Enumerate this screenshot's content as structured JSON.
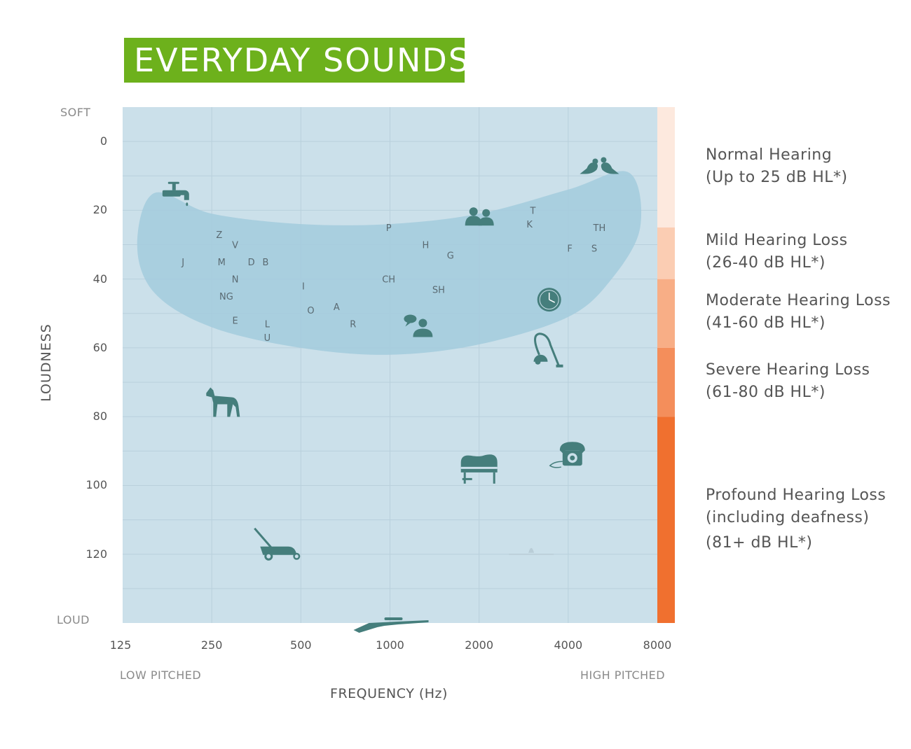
{
  "title": "EVERYDAY SOUNDS",
  "soft_label": "SOFT",
  "loud_label": "LOUD",
  "low_pitched_label": "LOW PITCHED",
  "high_pitched_label": "HIGH PITCHED",
  "colors": {
    "title_bg": "#6db11c",
    "plot_bg": "#cbe0ea",
    "speech_banana": "#a3cbdd",
    "icon": "#457e7c",
    "normal": "#fde9de",
    "mild": "#fbcdb3",
    "moderate": "#f8ae86",
    "severe": "#f48e5b",
    "profound": "#f0702f"
  },
  "chart_data": {
    "type": "scatter",
    "title": "EVERYDAY SOUNDS",
    "xlabel": "FREQUENCY (Hz)",
    "ylabel": "LOUDNESS",
    "x_scale": "log2",
    "x_ticks": [
      "125",
      "250",
      "500",
      "1000",
      "2000",
      "4000",
      "8000"
    ],
    "y_ticks": [
      "0",
      "20",
      "40",
      "60",
      "80",
      "100",
      "120"
    ],
    "xlim": [
      125,
      8000
    ],
    "ylim": [
      -10,
      140
    ],
    "y_inverted": true,
    "grid": true,
    "speech_area_outline": [
      [
        160,
        15
      ],
      [
        250,
        21
      ],
      [
        500,
        24
      ],
      [
        1000,
        24
      ],
      [
        2000,
        21
      ],
      [
        4000,
        14
      ],
      [
        6400,
        9
      ],
      [
        7000,
        25
      ],
      [
        5600,
        40
      ],
      [
        4000,
        51
      ],
      [
        2000,
        59
      ],
      [
        1000,
        62
      ],
      [
        500,
        60
      ],
      [
        250,
        54
      ],
      [
        160,
        44
      ],
      [
        140,
        30
      ]
    ],
    "phonemes": [
      {
        "label": "Z",
        "x": 265,
        "y": 27
      },
      {
        "label": "V",
        "x": 300,
        "y": 30
      },
      {
        "label": "J",
        "x": 200,
        "y": 35
      },
      {
        "label": "M",
        "x": 270,
        "y": 35
      },
      {
        "label": "D",
        "x": 340,
        "y": 35
      },
      {
        "label": "B",
        "x": 380,
        "y": 35
      },
      {
        "label": "N",
        "x": 300,
        "y": 40
      },
      {
        "label": "NG",
        "x": 280,
        "y": 45
      },
      {
        "label": "E",
        "x": 300,
        "y": 52
      },
      {
        "label": "L",
        "x": 385,
        "y": 53
      },
      {
        "label": "U",
        "x": 385,
        "y": 57
      },
      {
        "label": "I",
        "x": 510,
        "y": 42
      },
      {
        "label": "O",
        "x": 540,
        "y": 49
      },
      {
        "label": "A",
        "x": 660,
        "y": 48
      },
      {
        "label": "R",
        "x": 750,
        "y": 53
      },
      {
        "label": "P",
        "x": 990,
        "y": 25
      },
      {
        "label": "H",
        "x": 1320,
        "y": 30
      },
      {
        "label": "G",
        "x": 1600,
        "y": 33
      },
      {
        "label": "CH",
        "x": 990,
        "y": 40
      },
      {
        "label": "SH",
        "x": 1460,
        "y": 43
      },
      {
        "label": "K",
        "x": 2960,
        "y": 24
      },
      {
        "label": "T",
        "x": 3040,
        "y": 20
      },
      {
        "label": "TH",
        "x": 5100,
        "y": 25
      },
      {
        "label": "F",
        "x": 4050,
        "y": 31
      },
      {
        "label": "S",
        "x": 4900,
        "y": 31
      }
    ],
    "sounds": [
      {
        "icon": "dripping-faucet-icon",
        "x": 190,
        "y": 15
      },
      {
        "icon": "birds-chirping-icon",
        "x": 5100,
        "y": 7
      },
      {
        "icon": "people-talking-icon",
        "x": 2000,
        "y": 22
      },
      {
        "icon": "clock-ticking-icon",
        "x": 3450,
        "y": 46
      },
      {
        "icon": "person-speaking-icon",
        "x": 1250,
        "y": 54
      },
      {
        "icon": "vacuum-cleaner-icon",
        "x": 3300,
        "y": 62
      },
      {
        "icon": "dog-barking-icon",
        "x": 270,
        "y": 76
      },
      {
        "icon": "piano-icon",
        "x": 2000,
        "y": 95
      },
      {
        "icon": "telephone-ringing-icon",
        "x": 4000,
        "y": 91
      },
      {
        "icon": "lawn-mower-icon",
        "x": 420,
        "y": 119
      },
      {
        "icon": "airplane-icon",
        "x": 3000,
        "y": 120
      },
      {
        "icon": "rifle-icon",
        "x": 1000,
        "y": 140
      }
    ],
    "hearing_levels": [
      {
        "name": "Normal Hearing",
        "range": "(Up to 25 dB HL*)",
        "from": -10,
        "to": 25,
        "color": "#fde9de"
      },
      {
        "name": "Mild Hearing Loss",
        "range": "(26-40 dB HL*)",
        "from": 25,
        "to": 40,
        "color": "#fbcdb3"
      },
      {
        "name": "Moderate Hearing Loss",
        "range": "(41-60 dB HL*)",
        "from": 40,
        "to": 60,
        "color": "#f8ae86"
      },
      {
        "name": "Severe Hearing Loss",
        "range": "(61-80 dB HL*)",
        "from": 60,
        "to": 80,
        "color": "#f48e5b"
      },
      {
        "name": "Profound Hearing Loss",
        "range": "(81+ dB HL*)",
        "note": "(including deafness)",
        "from": 80,
        "to": 140,
        "color": "#f0702f"
      }
    ]
  }
}
